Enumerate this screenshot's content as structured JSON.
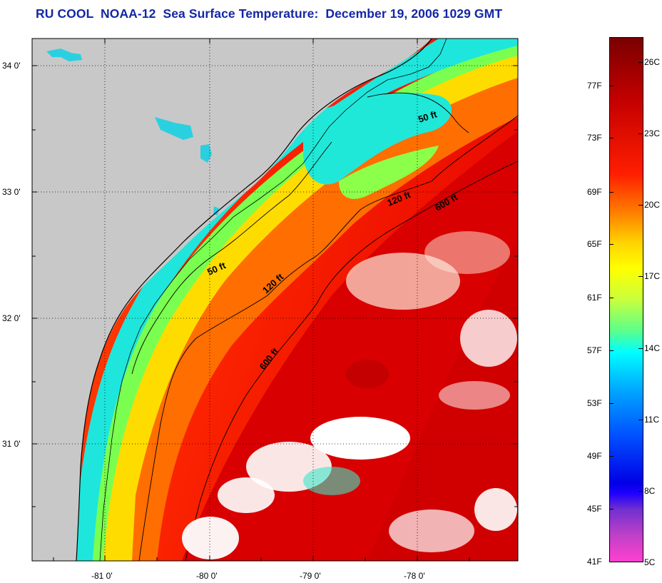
{
  "title": "RU COOL  NOAA-12  Sea Surface Temperature:  December 19, 2006 1029 GMT",
  "latitude_labels": [
    "34 0'",
    "33 0'",
    "32 0'",
    "31 0'"
  ],
  "longitude_labels": [
    "-81 0'",
    "-80 0'",
    "-79 0'",
    "-78 0'"
  ],
  "isobath_labels": [
    "50 ft",
    "120 ft",
    "600 ft",
    "50 ft",
    "120 ft",
    "600 ft"
  ],
  "colorbar": {
    "fahrenheit": [
      "77F",
      "73F",
      "69F",
      "65F",
      "61F",
      "57F",
      "53F",
      "49F",
      "45F",
      "41F"
    ],
    "celsius": [
      "26C",
      "23C",
      "20C",
      "17C",
      "14C",
      "11C",
      "8C",
      "5C"
    ]
  }
}
